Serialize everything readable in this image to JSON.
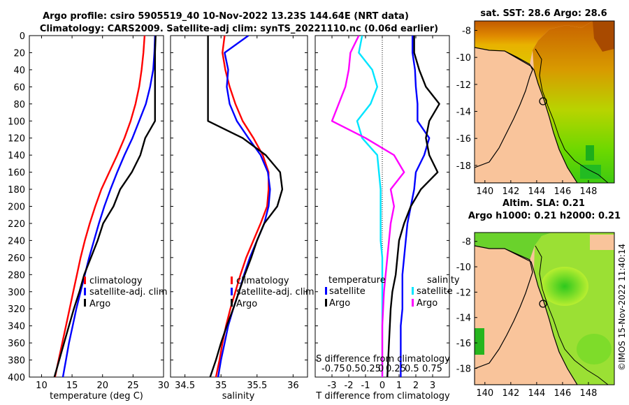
{
  "header": {
    "title_line1": "Argo profile: csiro 5905519_40 10-Nov-2022 13.23S 144.64E (NRT data)",
    "title_line2": "Climatology: CARS2009. Satellite-adj clim: synTS_20221110.nc (0.06d earlier)"
  },
  "credit": "©IMOS 15-Nov-2022 11:40:14",
  "colors": {
    "climatology": "#ff0000",
    "satellite": "#0000ff",
    "argo": "#000000",
    "s_satellite": "#00e5ff",
    "s_argo": "#ff00ff",
    "land": "#f9c49b",
    "coast": "#000000"
  },
  "chart_data": [
    {
      "type": "line",
      "id": "temperature_profile",
      "xlabel": "temperature (deg C)",
      "ylabel": "",
      "xlim": [
        8,
        30
      ],
      "ylim": [
        400,
        0
      ],
      "xticks": [
        10,
        15,
        20,
        25,
        30
      ],
      "yticks": [
        0,
        20,
        40,
        60,
        80,
        100,
        120,
        140,
        160,
        180,
        200,
        220,
        240,
        260,
        280,
        300,
        320,
        340,
        360,
        380,
        400
      ],
      "legend": [
        "climatology",
        "satellite-adj. clim",
        "Argo"
      ],
      "series": [
        {
          "name": "climatology",
          "color": "#ff0000",
          "x": [
            26.9,
            26.7,
            26.4,
            26.0,
            25.4,
            24.6,
            23.6,
            22.4,
            21.1,
            19.8,
            18.8,
            17.9,
            17.1,
            16.4,
            15.8,
            15.2,
            14.6,
            14.0,
            13.4,
            12.8,
            12.2
          ],
          "y": [
            0,
            20,
            40,
            60,
            80,
            100,
            120,
            140,
            160,
            180,
            200,
            220,
            240,
            260,
            280,
            300,
            320,
            340,
            360,
            380,
            400
          ]
        },
        {
          "name": "satellite-adj. clim",
          "color": "#0000ff",
          "x": [
            28.6,
            28.5,
            28.3,
            27.8,
            27.1,
            26.0,
            24.9,
            23.6,
            22.4,
            21.3,
            20.3,
            19.4,
            18.6,
            17.8,
            17.1,
            16.4,
            15.7,
            15.1,
            14.5,
            14.0,
            13.5
          ],
          "y": [
            0,
            20,
            40,
            60,
            80,
            100,
            120,
            140,
            160,
            180,
            200,
            220,
            240,
            260,
            280,
            300,
            320,
            340,
            360,
            380,
            400
          ]
        },
        {
          "name": "Argo",
          "color": "#000000",
          "x": [
            28.7,
            28.6,
            28.6,
            28.6,
            28.6,
            28.6,
            27.0,
            26.2,
            24.8,
            22.9,
            21.8,
            20.1,
            19.2,
            18.1,
            17.0,
            16.2,
            15.3,
            14.5,
            13.7,
            12.9,
            12.1
          ],
          "y": [
            0,
            20,
            40,
            60,
            80,
            100,
            120,
            140,
            160,
            180,
            200,
            220,
            240,
            260,
            280,
            300,
            320,
            340,
            360,
            380,
            400
          ]
        }
      ]
    },
    {
      "type": "line",
      "id": "salinity_profile",
      "xlabel": "salinity",
      "xlim": [
        34.3,
        36.2
      ],
      "ylim": [
        400,
        0
      ],
      "xticks": [
        34.5,
        35,
        35.5,
        36
      ],
      "legend": [
        "climatology",
        "satellite-adj. clim",
        "Argo"
      ],
      "series": [
        {
          "name": "climatology",
          "color": "#ff0000",
          "x": [
            35.05,
            35.02,
            35.06,
            35.12,
            35.2,
            35.3,
            35.45,
            35.58,
            35.66,
            35.66,
            35.64,
            35.55,
            35.45,
            35.35,
            35.27,
            35.2,
            35.13,
            35.07,
            35.02,
            34.98,
            34.93
          ],
          "y": [
            0,
            20,
            40,
            60,
            80,
            100,
            120,
            140,
            160,
            180,
            200,
            220,
            240,
            260,
            280,
            300,
            320,
            340,
            360,
            380,
            400
          ]
        },
        {
          "name": "satellite-adj. clim",
          "color": "#0000ff",
          "x": [
            35.38,
            35.05,
            35.1,
            35.08,
            35.12,
            35.22,
            35.38,
            35.55,
            35.65,
            35.68,
            35.66,
            35.6,
            35.5,
            35.4,
            35.32,
            35.25,
            35.17,
            35.1,
            35.05,
            35.0,
            34.96
          ],
          "y": [
            0,
            20,
            40,
            60,
            80,
            100,
            120,
            140,
            160,
            180,
            200,
            220,
            240,
            260,
            280,
            300,
            320,
            340,
            360,
            380,
            400
          ]
        },
        {
          "name": "Argo",
          "color": "#000000",
          "x": [
            34.82,
            34.82,
            34.82,
            34.82,
            34.82,
            34.82,
            35.3,
            35.62,
            35.82,
            35.85,
            35.78,
            35.6,
            35.5,
            35.42,
            35.33,
            35.25,
            35.17,
            35.08,
            35.0,
            34.93,
            34.85
          ],
          "y": [
            0,
            20,
            40,
            60,
            80,
            100,
            120,
            140,
            160,
            180,
            200,
            220,
            240,
            260,
            280,
            300,
            320,
            340,
            360,
            380,
            400
          ]
        }
      ]
    },
    {
      "type": "line",
      "id": "difference_profile",
      "xlabel": "T difference from climatology",
      "top_axis_label": "S difference from climatology",
      "top_tick_labels": [
        "-0.75",
        "0.5",
        "0.25",
        "0",
        "0.25",
        "0.5",
        "0.75"
      ],
      "xlim": [
        -4,
        4
      ],
      "ylim": [
        400,
        0
      ],
      "xticks": [
        -3,
        -2,
        -1,
        0,
        1,
        2,
        3
      ],
      "legend_left_title": "temperature",
      "legend_right_title": "salinity",
      "legend_left": [
        "satellite",
        "Argo"
      ],
      "legend_right": [
        "satellite",
        "Argo"
      ],
      "series": [
        {
          "name": "T satellite",
          "color": "#0000ff",
          "x": [
            1.8,
            1.8,
            1.95,
            2.0,
            2.1,
            2.1,
            2.8,
            2.5,
            2.0,
            1.9,
            1.7,
            1.5,
            1.4,
            1.3,
            1.2,
            1.2,
            1.2,
            1.1,
            1.1,
            1.1,
            1.1
          ],
          "y": [
            0,
            20,
            40,
            60,
            80,
            100,
            120,
            140,
            160,
            180,
            200,
            220,
            240,
            260,
            280,
            300,
            320,
            340,
            360,
            380,
            400
          ]
        },
        {
          "name": "T Argo",
          "color": "#000000",
          "x": [
            1.9,
            1.9,
            2.2,
            2.6,
            3.4,
            2.8,
            2.6,
            2.8,
            3.3,
            2.3,
            1.7,
            1.3,
            1.0,
            0.9,
            0.8,
            0.6,
            0.5,
            0.45,
            0.4,
            0.35,
            0.3
          ],
          "y": [
            0,
            20,
            40,
            60,
            80,
            100,
            120,
            140,
            160,
            180,
            200,
            220,
            240,
            260,
            280,
            300,
            320,
            340,
            360,
            380,
            400
          ]
        },
        {
          "name": "S satellite",
          "color": "#00e5ff",
          "x": [
            -1.2,
            -1.4,
            -0.6,
            -0.3,
            -0.7,
            -1.5,
            -1.2,
            -0.3,
            -0.2,
            -0.1,
            -0.1,
            -0.1,
            -0.1,
            0.0,
            0.0,
            0.0,
            0.0,
            0.0,
            0.0,
            0.0,
            0.0
          ],
          "y": [
            0,
            20,
            40,
            60,
            80,
            100,
            120,
            140,
            160,
            180,
            200,
            220,
            240,
            260,
            280,
            300,
            320,
            340,
            360,
            380,
            400
          ]
        },
        {
          "name": "S Argo",
          "color": "#ff00ff",
          "x": [
            -1.4,
            -1.9,
            -2.0,
            -2.2,
            -2.6,
            -3.0,
            -1.0,
            0.7,
            1.3,
            0.5,
            0.7,
            0.5,
            0.4,
            0.3,
            0.2,
            0.1,
            0.05,
            0.0,
            0.0,
            0.0,
            0.0
          ],
          "y": [
            0,
            20,
            40,
            60,
            80,
            100,
            120,
            140,
            160,
            180,
            200,
            220,
            240,
            260,
            280,
            300,
            320,
            340,
            360,
            380,
            400
          ]
        }
      ]
    },
    {
      "type": "heatmap",
      "id": "sst_map",
      "title": "sat. SST: 28.6 Argo: 28.6",
      "xticks": [
        140,
        142,
        144,
        146,
        148
      ],
      "yticks": [
        -8,
        -10,
        -12,
        -14,
        -16,
        -18
      ],
      "xlim": [
        139.2,
        150.0
      ],
      "ylim": [
        -19.3,
        -7.3
      ],
      "float_position": [
        144.64,
        -13.23
      ]
    },
    {
      "type": "heatmap",
      "id": "sla_map",
      "title_line1": "Altim. SLA: 0.21",
      "title_line2": "Argo h1000: 0.21 h2000: 0.21",
      "xticks": [
        140,
        142,
        144,
        146,
        148
      ],
      "yticks": [
        -8,
        -10,
        -12,
        -14,
        -16,
        -18
      ],
      "xlim": [
        139.2,
        150.0
      ],
      "ylim": [
        -19.3,
        -7.3
      ],
      "float_position": [
        144.64,
        -13.23
      ]
    }
  ]
}
